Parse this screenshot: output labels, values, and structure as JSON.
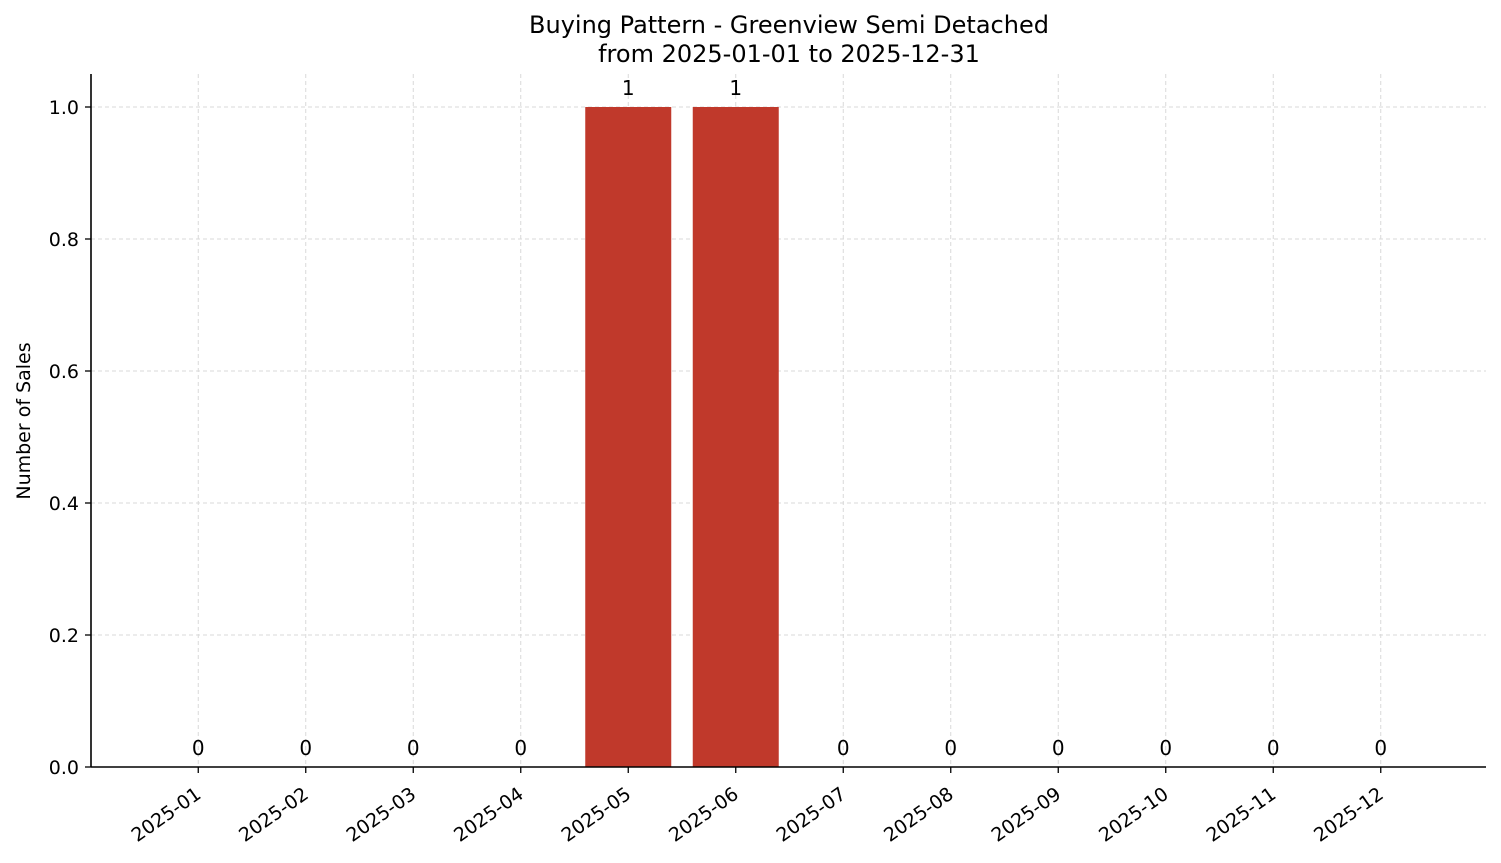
{
  "chart_data": {
    "type": "bar",
    "title_line1": "Buying Pattern - Greenview Semi Detached",
    "title_line2": "from 2025-01-01 to 2025-12-31",
    "xlabel": "",
    "ylabel": "Number of Sales",
    "categories": [
      "2025-01",
      "2025-02",
      "2025-03",
      "2025-04",
      "2025-05",
      "2025-06",
      "2025-07",
      "2025-08",
      "2025-09",
      "2025-10",
      "2025-11",
      "2025-12"
    ],
    "values": [
      0,
      0,
      0,
      0,
      1,
      1,
      0,
      0,
      0,
      0,
      0,
      0
    ],
    "data_labels": [
      "0",
      "0",
      "0",
      "0",
      "1",
      "1",
      "0",
      "0",
      "0",
      "0",
      "0",
      "0"
    ],
    "ylim": [
      0,
      1.05
    ],
    "yticks": [
      0.0,
      0.2,
      0.4,
      0.6,
      0.8,
      1.0
    ],
    "ytick_labels": [
      "0.0",
      "0.2",
      "0.4",
      "0.6",
      "0.8",
      "1.0"
    ],
    "grid": true,
    "bar_color": "#c0392b"
  }
}
